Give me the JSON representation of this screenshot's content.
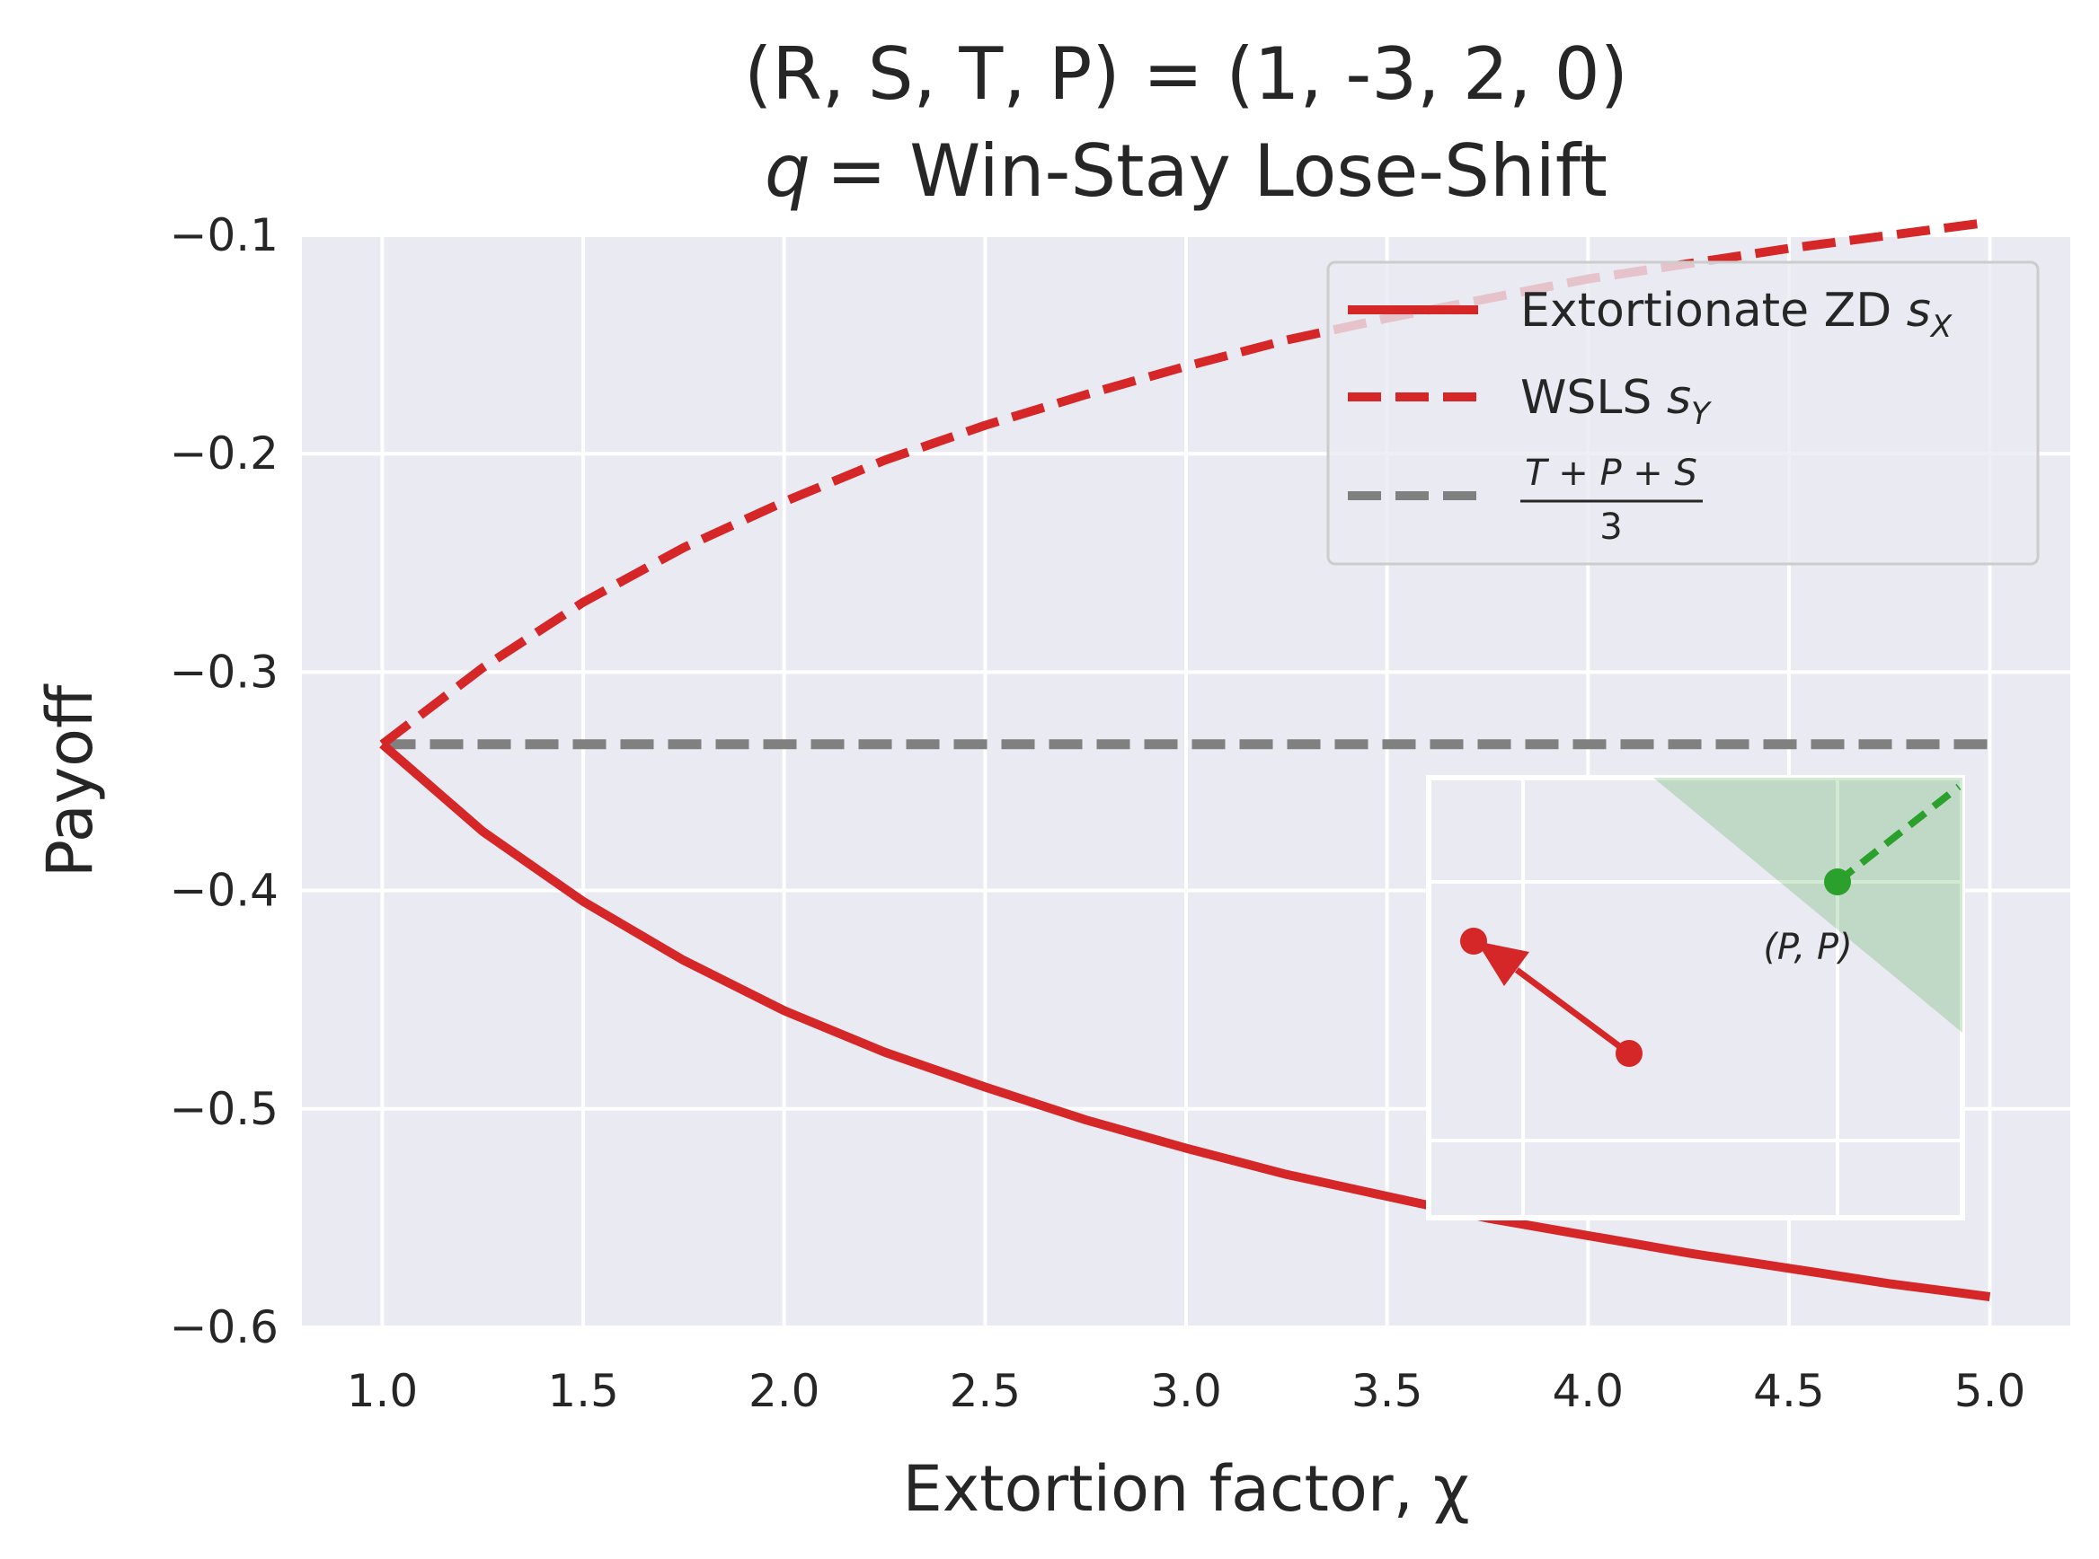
{
  "chart_data": {
    "type": "line",
    "title_line1": "(R, S, T, P) = (1, -3, 2, 0)",
    "title_line2_var": "q",
    "title_line2_text": "= Win-Stay Lose-Shift",
    "xlabel": "Extortion factor, χ",
    "ylabel": "Payoff",
    "xlim": [
      0.8,
      5.2
    ],
    "ylim": [
      -0.6,
      -0.1
    ],
    "x_ticks": [
      "1.0",
      "1.5",
      "2.0",
      "2.5",
      "3.0",
      "3.5",
      "4.0",
      "4.5",
      "5.0"
    ],
    "y_ticks": [
      "−0.1",
      "−0.2",
      "−0.3",
      "−0.4",
      "−0.5",
      "−0.6"
    ],
    "grid": true,
    "legend_position": "top-right",
    "x": [
      1.0,
      1.25,
      1.5,
      1.75,
      2.0,
      2.25,
      2.5,
      2.75,
      3.0,
      3.25,
      3.5,
      3.75,
      4.0,
      4.25,
      4.5,
      4.75,
      5.0
    ],
    "series": [
      {
        "name": "Extortionate ZD s_X",
        "legend_text": "Extortionate ZD ",
        "legend_sym": "s",
        "legend_sub": "X",
        "style": "solid",
        "color": "#d62728",
        "values": [
          -0.333,
          -0.373,
          -0.405,
          -0.432,
          -0.455,
          -0.474,
          -0.49,
          -0.505,
          -0.518,
          -0.53,
          -0.54,
          -0.55,
          -0.558,
          -0.566,
          -0.573,
          -0.58,
          -0.586
        ]
      },
      {
        "name": "WSLS s_Y",
        "legend_text": "WSLS ",
        "legend_sym": "s",
        "legend_sub": "Y",
        "style": "dashed",
        "color": "#d62728",
        "values": [
          -0.333,
          -0.298,
          -0.268,
          -0.243,
          -0.222,
          -0.203,
          -0.187,
          -0.173,
          -0.16,
          -0.148,
          -0.138,
          -0.129,
          -0.12,
          -0.113,
          -0.106,
          -0.1,
          -0.094
        ]
      },
      {
        "name": "(T+P+S)/3",
        "legend_numerator": "T + P + S",
        "legend_denominator": "3",
        "style": "dashed",
        "color": "#808080",
        "values": [
          -0.333,
          -0.333,
          -0.333,
          -0.333,
          -0.333,
          -0.333,
          -0.333,
          -0.333,
          -0.333,
          -0.333,
          -0.333,
          -0.333,
          -0.333,
          -0.333,
          -0.333,
          -0.333,
          -0.333
        ]
      }
    ],
    "inset": {
      "point_label": "(P, P)",
      "red_arrow_color": "#d62728",
      "green_color": "#2ca02c",
      "region_color": "#2ca02c"
    }
  },
  "colors": {
    "axes_bg": "#eaeaf2",
    "grid": "#ffffff"
  }
}
